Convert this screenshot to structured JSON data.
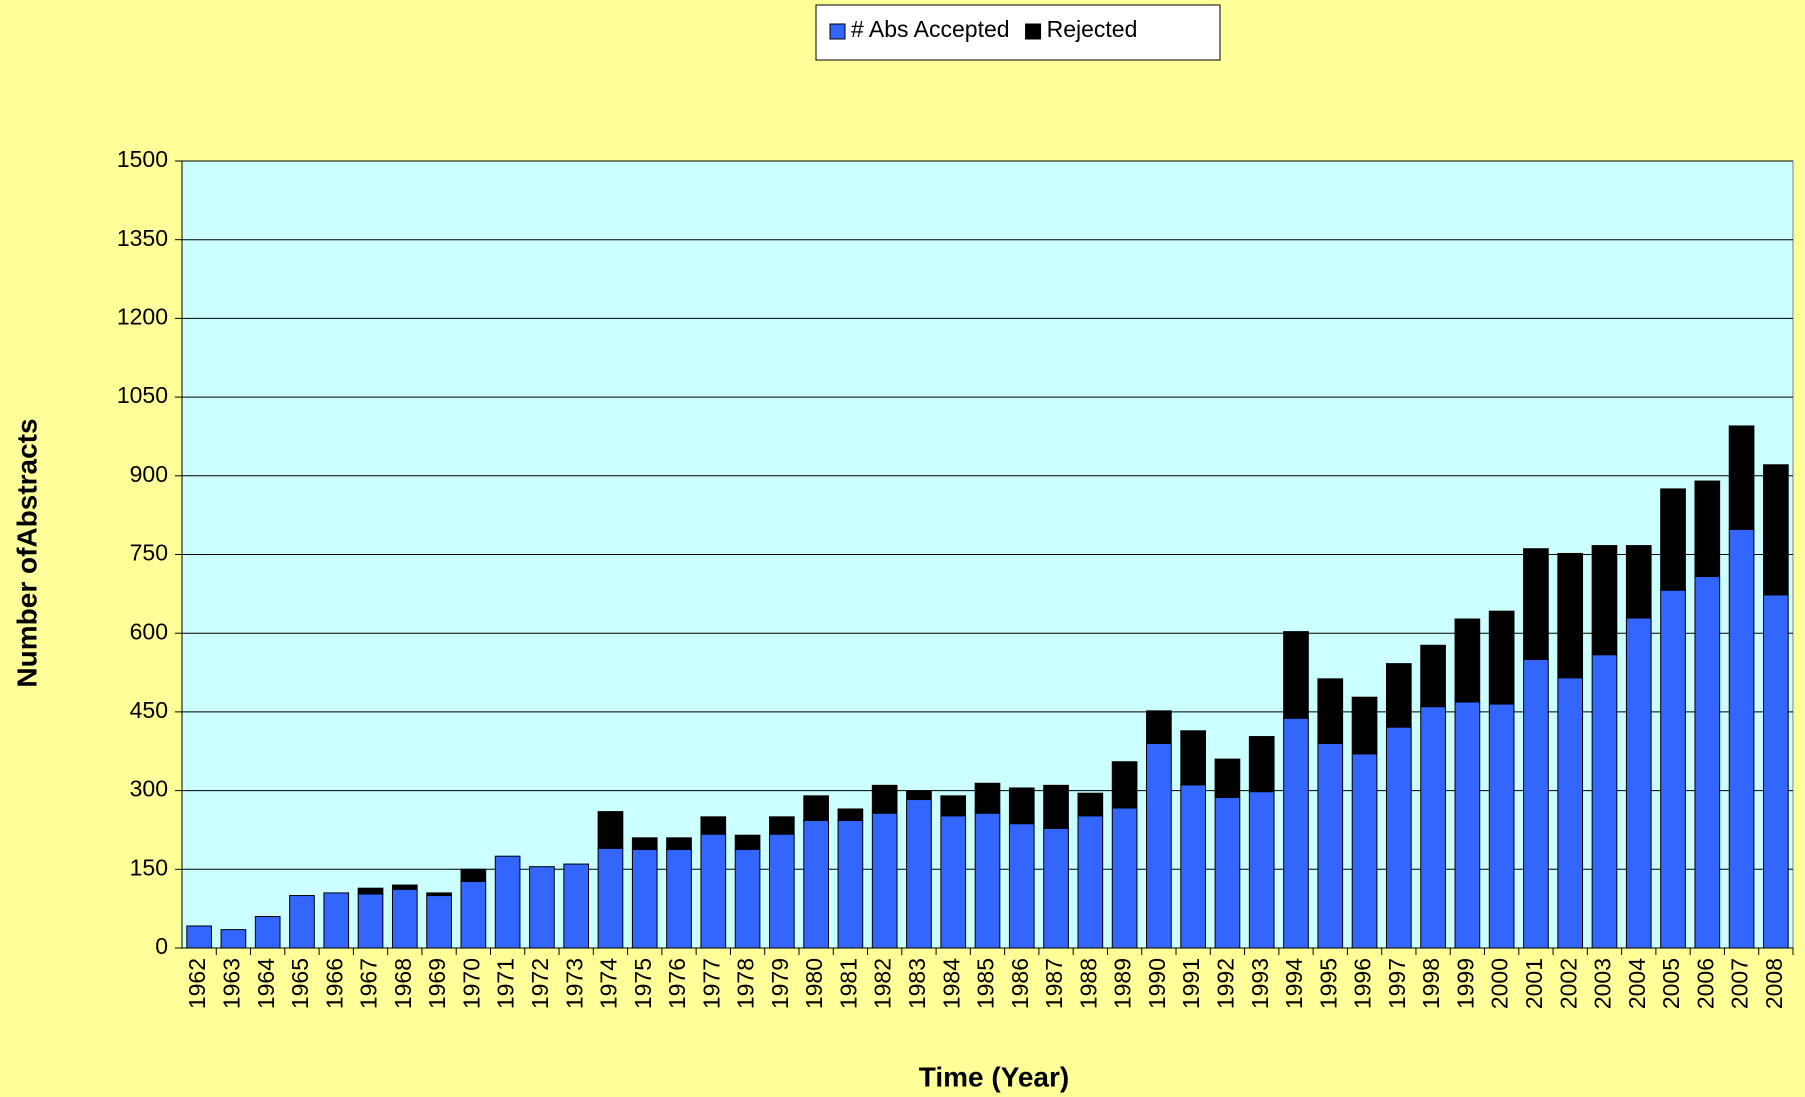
{
  "chart_data": {
    "type": "stacked_bar",
    "x_label": "Time (Year)",
    "y_label": "Number ofAbstracts",
    "categories": [
      "1962",
      "1963",
      "1964",
      "1965",
      "1966",
      "1967",
      "1968",
      "1969",
      "1970",
      "1971",
      "1972",
      "1973",
      "1974",
      "1975",
      "1976",
      "1977",
      "1978",
      "1979",
      "1980",
      "1981",
      "1982",
      "1983",
      "1984",
      "1985",
      "1986",
      "1987",
      "1988",
      "1989",
      "1990",
      "1991",
      "1992",
      "1993",
      "1994",
      "1995",
      "1996",
      "1997",
      "1998",
      "1999",
      "2000",
      "2001",
      "2002",
      "2003",
      "2004",
      "2005",
      "2006",
      "2007",
      "2008"
    ],
    "series": [
      {
        "name": "# Abs Accepted",
        "color": "#3366ff",
        "values": [
          42,
          35,
          60,
          100,
          105,
          103,
          112,
          100,
          127,
          175,
          155,
          160,
          190,
          188,
          188,
          217,
          188,
          217,
          243,
          243,
          257,
          283,
          252,
          257,
          237,
          228,
          252,
          267,
          390,
          311,
          287,
          298,
          438,
          390,
          370,
          421,
          460,
          469,
          465,
          550,
          515,
          559,
          629,
          682,
          708,
          798,
          673
        ]
      },
      {
        "name": "Rejected",
        "color": "#000000",
        "values": [
          0,
          0,
          0,
          0,
          0,
          11,
          8,
          5,
          23,
          0,
          0,
          0,
          70,
          22,
          22,
          33,
          27,
          33,
          47,
          22,
          53,
          17,
          38,
          57,
          68,
          82,
          43,
          88,
          62,
          103,
          73,
          105,
          165,
          123,
          108,
          121,
          117,
          158,
          177,
          211,
          237,
          208,
          138,
          193,
          182,
          197,
          248
        ]
      }
    ],
    "ylim": [
      0,
      1500
    ],
    "yticks": [
      0,
      150,
      300,
      450,
      600,
      750,
      900,
      1050,
      1200,
      1350,
      1500
    ],
    "grid": true,
    "legend": "top"
  }
}
